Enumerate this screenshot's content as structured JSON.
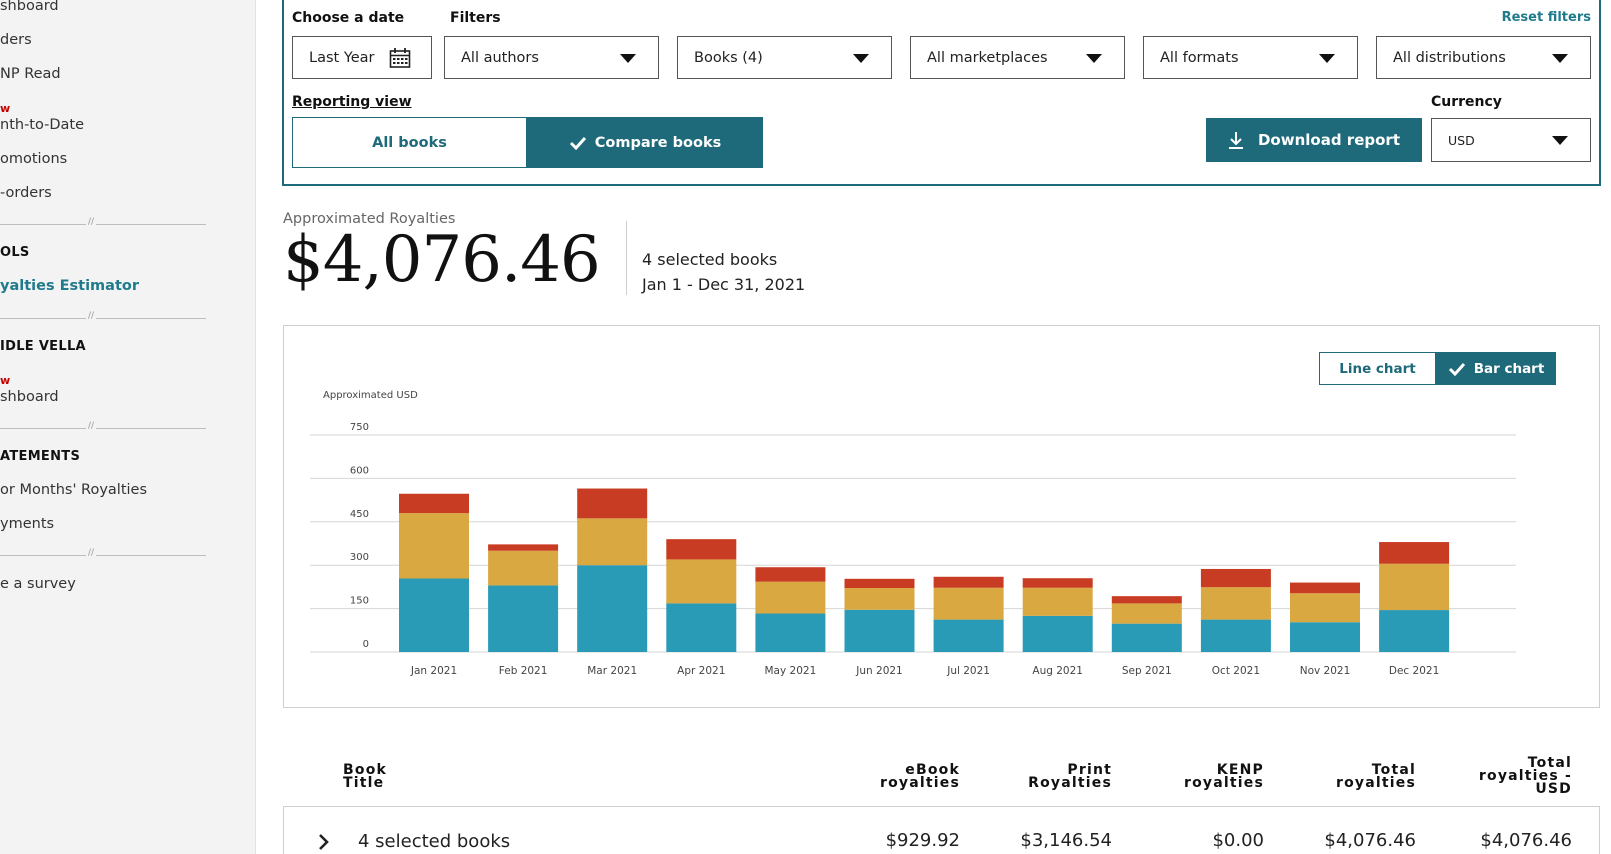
{
  "sidebar": {
    "items": [
      {
        "label": "shboard"
      },
      {
        "label": "ders"
      },
      {
        "label": "NP Read"
      },
      {
        "new": "w",
        "label": "nth-to-Date"
      },
      {
        "label": "omotions"
      },
      {
        "label": "-orders"
      },
      {
        "heading": "OLS"
      },
      {
        "link": "yalties Estimator"
      },
      {
        "heading": "IDLE VELLA"
      },
      {
        "new": "w",
        "label": "shboard"
      },
      {
        "heading": "ATEMENTS"
      },
      {
        "label": "or Months' Royalties"
      },
      {
        "label": "yments"
      },
      {
        "label": "e a survey"
      }
    ]
  },
  "filters": {
    "date_label": "Choose a date",
    "date_value": "Last Year",
    "filters_label": "Filters",
    "reset": "Reset filters",
    "dropdowns": [
      "All authors",
      "Books (4)",
      "All marketplaces",
      "All formats",
      "All distributions"
    ],
    "reporting_view": "Reporting view",
    "tabs": [
      "All books",
      "Compare books"
    ],
    "download": "Download report",
    "currency_label": "Currency",
    "currency_value": "USD"
  },
  "summary": {
    "label": "Approximated Royalties",
    "amount": "$4,076.46",
    "selected": "4 selected books",
    "range": "Jan 1 - Dec 31, 2021"
  },
  "chart_toggle": {
    "line": "Line chart",
    "bar": "Bar chart"
  },
  "chart_data": {
    "type": "bar",
    "stacked": true,
    "ylabel": "Approximated USD",
    "ylim": [
      0,
      750
    ],
    "yticks": [
      "0",
      "150",
      "300",
      "450",
      "600",
      "750"
    ],
    "categories": [
      "Jan 2021",
      "Feb 2021",
      "Mar 2021",
      "Apr 2021",
      "May 2021",
      "Jun 2021",
      "Jul 2021",
      "Aug 2021",
      "Sep 2021",
      "Oct 2021",
      "Nov 2021",
      "Dec 2021"
    ],
    "series": [
      {
        "color": "#2a9bb7",
        "values": [
          254,
          230,
          300,
          168,
          133,
          146,
          112,
          125,
          98,
          112,
          103,
          145
        ]
      },
      {
        "color": "#d9a840",
        "values": [
          226,
          120,
          162,
          152,
          110,
          75,
          110,
          97,
          70,
          112,
          100,
          160
        ]
      },
      {
        "color": "#c93c24",
        "values": [
          67,
          22,
          103,
          70,
          50,
          32,
          38,
          33,
          25,
          63,
          37,
          75
        ]
      }
    ],
    "grid": true
  },
  "table": {
    "headers": {
      "title": [
        "Book",
        "Title"
      ],
      "ebook": [
        "eBook",
        "royalties"
      ],
      "print": [
        "Print",
        "Royalties"
      ],
      "kenp": [
        "KENP",
        "royalties"
      ],
      "total": [
        "Total",
        "royalties"
      ],
      "total_usd": [
        "Total",
        "royalties -",
        "USD"
      ]
    },
    "row": {
      "title": "4 selected books",
      "ebook": "$929.92",
      "print": "$3,146.54",
      "kenp": "$0.00",
      "total": "$4,076.46",
      "total_usd": "$4,076.46"
    }
  }
}
